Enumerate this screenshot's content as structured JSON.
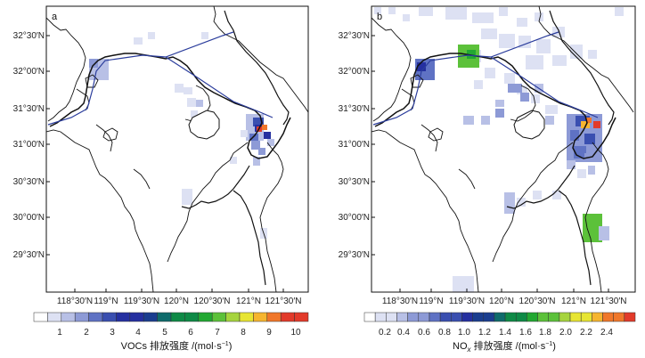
{
  "panels": [
    {
      "letter": "a",
      "lat_ticks": [
        "32°30′N",
        "32°00′N",
        "31°30′N",
        "31°00′N",
        "30°30′N",
        "30°00′N",
        "29°30′N"
      ],
      "lon_ticks": [
        "118°30′N",
        "119°N",
        "119°30′N",
        "120°N",
        "120°30′N",
        "121°N",
        "121°30′N"
      ],
      "colorbar": {
        "ticks": [
          "1",
          "2",
          "3",
          "4",
          "5",
          "6",
          "7",
          "8",
          "9",
          "10"
        ],
        "title_main": "VOCs 排放强度 /(mol·s",
        "title_sup": "−1",
        "title_end": ")"
      }
    },
    {
      "letter": "b",
      "lat_ticks": [
        "32°30′N",
        "32°00′N",
        "31°30′N",
        "31°00′N",
        "30°30′N",
        "30°00′N",
        "29°30′N"
      ],
      "lon_ticks": [
        "118°30′N",
        "119°N",
        "119°30′N",
        "120°N",
        "120°30′N",
        "121°N",
        "121°30′N"
      ],
      "colorbar": {
        "ticks": [
          "0.2",
          "0.4",
          "0.6",
          "0.8",
          "1.0",
          "1.2",
          "1.4",
          "1.6",
          "1.8",
          "2.0",
          "2.2",
          "2.4"
        ],
        "title_main": "NO",
        "title_sub": "x",
        "title_rest": " 排放强度 /(mol·s",
        "title_sup": "−1",
        "title_end": ")"
      }
    }
  ],
  "colors": {
    "scale": [
      "#ffffff",
      "#dde1f3",
      "#b8c0e6",
      "#8d9ad6",
      "#5f72c4",
      "#3a4fb0",
      "#2530a0",
      "#1a3d8f",
      "#0f6b6b",
      "#0e8a46",
      "#22a832",
      "#5cc13a",
      "#a6d43e",
      "#e7e533",
      "#f6b52f",
      "#f0772a",
      "#e23a2a"
    ],
    "border": "#111111",
    "route": "#2b3d9c"
  }
}
